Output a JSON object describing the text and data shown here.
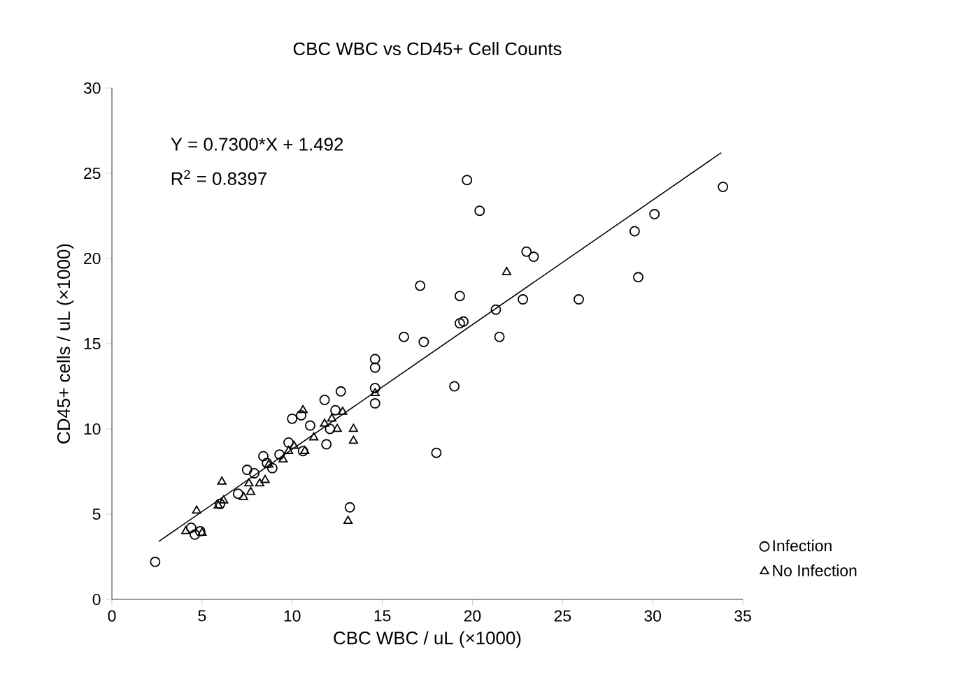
{
  "chart_data": {
    "type": "scatter",
    "title": "CBC WBC vs CD45+ Cell Counts",
    "xlabel": "CBC WBC / uL (×1000)",
    "ylabel": "CD45+ cells / uL (×1000)",
    "xlim": [
      0,
      35
    ],
    "ylim": [
      0,
      30
    ],
    "xticks": [
      0,
      5,
      10,
      15,
      20,
      25,
      30,
      35
    ],
    "yticks": [
      0,
      5,
      10,
      15,
      20,
      25,
      30
    ],
    "grid": false,
    "legend": "bottom right",
    "annotations": [
      "Y = 0.7300*X + 1.492",
      "R$^{2}$ = 0.8397"
    ],
    "series": [
      {
        "name": "Infection",
        "color": "#000000",
        "marker": "circle",
        "x": [
          2.4,
          4.4,
          4.9,
          4.6,
          6.0,
          7.0,
          7.5,
          7.9,
          8.4,
          8.9,
          8.6,
          9.3,
          9.8,
          10.0,
          10.5,
          10.6,
          11.0,
          11.8,
          12.7,
          11.9,
          12.4,
          12.1,
          13.2,
          14.6,
          14.6,
          14.6,
          14.6,
          16.2,
          17.1,
          17.3,
          18.0,
          19.0,
          19.3,
          19.3,
          19.5,
          19.7,
          20.4,
          21.3,
          21.5,
          22.8,
          23.0,
          23.4,
          25.9,
          29.0,
          29.2,
          30.1,
          33.9
        ],
        "values": [
          2.2,
          4.2,
          4.0,
          3.8,
          5.6,
          6.2,
          7.6,
          7.4,
          8.4,
          7.7,
          8.0,
          8.5,
          9.2,
          10.6,
          10.8,
          8.7,
          10.2,
          11.7,
          12.2,
          9.1,
          11.1,
          10.0,
          5.4,
          14.1,
          13.6,
          12.4,
          11.5,
          15.4,
          18.4,
          15.1,
          8.6,
          12.5,
          17.8,
          16.2,
          16.3,
          24.6,
          22.8,
          17.0,
          15.4,
          17.6,
          20.4,
          20.1,
          17.6,
          21.6,
          18.9,
          22.6,
          24.2
        ]
      },
      {
        "name": "No Infection",
        "color": "#000000",
        "marker": "triangle",
        "x": [
          4.1,
          4.7,
          5.0,
          5.9,
          6.2,
          6.1,
          7.3,
          7.7,
          7.6,
          8.2,
          8.5,
          8.7,
          9.5,
          9.8,
          10.1,
          10.6,
          10.7,
          11.2,
          11.8,
          12.2,
          12.5,
          12.8,
          13.4,
          13.4,
          13.1,
          14.6,
          21.9
        ],
        "values": [
          4.0,
          5.2,
          3.9,
          5.5,
          5.8,
          6.9,
          6.0,
          6.3,
          6.8,
          6.8,
          7.0,
          7.9,
          8.2,
          8.7,
          9.0,
          11.1,
          8.7,
          9.5,
          10.3,
          10.6,
          10.0,
          11.0,
          10.0,
          9.3,
          4.6,
          12.1,
          19.2
        ]
      },
      {
        "type": "line",
        "color": "#000000",
        "marker": "none",
        "x": [
          2.6,
          33.8
        ],
        "values": [
          3.4,
          26.2
        ]
      }
    ]
  }
}
